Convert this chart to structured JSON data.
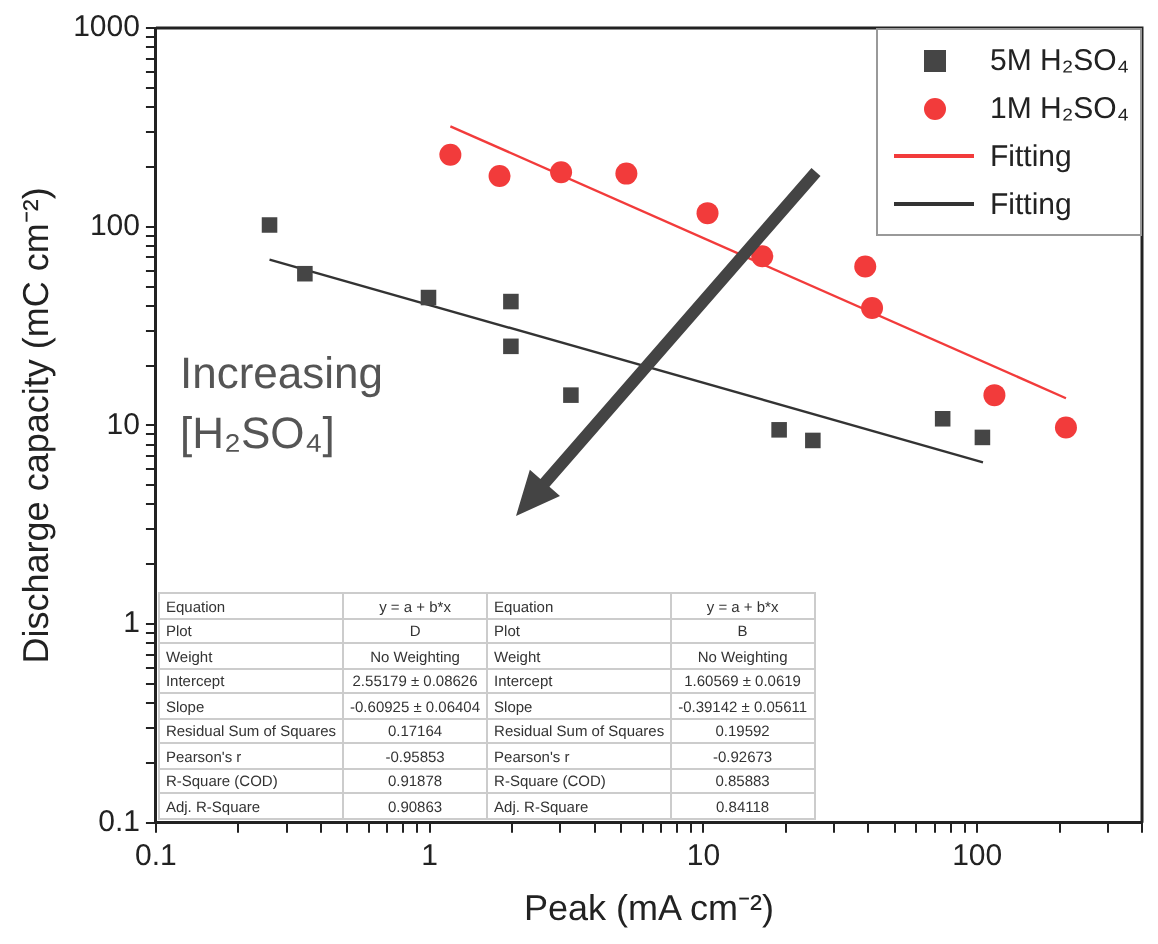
{
  "chart_data": {
    "type": "scatter",
    "xlabel": "Peak (mA cm⁻²)",
    "ylabel": "Discharge capacity (mC cm⁻²)",
    "log": "xy",
    "grid": false,
    "legend": "top right",
    "xlim": [
      0.1,
      400
    ],
    "ylim": [
      0.1,
      1000
    ],
    "xticks": [
      0.1,
      {
        "value": 0.2,
        "label": null
      },
      {
        "value": 0.3,
        "label": null
      },
      {
        "value": 0.4,
        "label": null
      },
      {
        "value": 0.5,
        "label": null
      },
      {
        "value": 0.6,
        "label": null
      },
      {
        "value": 0.7,
        "label": null
      },
      {
        "value": 0.8,
        "label": null
      },
      {
        "value": 0.9,
        "label": null
      },
      1,
      {
        "value": 2,
        "label": null
      },
      {
        "value": 3,
        "label": null
      },
      {
        "value": 4,
        "label": null
      },
      {
        "value": 5,
        "label": null
      },
      {
        "value": 6,
        "label": null
      },
      {
        "value": 7,
        "label": null
      },
      {
        "value": 8,
        "label": null
      },
      {
        "value": 9,
        "label": null
      },
      10,
      {
        "value": 20,
        "label": null
      },
      {
        "value": 30,
        "label": null
      },
      {
        "value": 40,
        "label": null
      },
      {
        "value": 50,
        "label": null
      },
      {
        "value": 60,
        "label": null
      },
      {
        "value": 70,
        "label": null
      },
      {
        "value": 80,
        "label": null
      },
      {
        "value": 90,
        "label": null
      },
      100,
      {
        "value": 200,
        "label": null
      },
      {
        "value": 300,
        "label": null
      },
      {
        "value": 400,
        "label": null
      }
    ],
    "yticks": [
      0.1,
      {
        "value": 0.2,
        "label": null
      },
      {
        "value": 0.3,
        "label": null
      },
      {
        "value": 0.4,
        "label": null
      },
      {
        "value": 0.5,
        "label": null
      },
      {
        "value": 0.6,
        "label": null
      },
      {
        "value": 0.7,
        "label": null
      },
      {
        "value": 0.8,
        "label": null
      },
      {
        "value": 0.9,
        "label": null
      },
      1,
      {
        "value": 2,
        "label": null
      },
      {
        "value": 3,
        "label": null
      },
      {
        "value": 4,
        "label": null
      },
      {
        "value": 5,
        "label": null
      },
      {
        "value": 6,
        "label": null
      },
      {
        "value": 7,
        "label": null
      },
      {
        "value": 8,
        "label": null
      },
      {
        "value": 9,
        "label": null
      },
      10,
      {
        "value": 20,
        "label": null
      },
      {
        "value": 30,
        "label": null
      },
      {
        "value": 40,
        "label": null
      },
      {
        "value": 50,
        "label": null
      },
      {
        "value": 60,
        "label": null
      },
      {
        "value": 70,
        "label": null
      },
      {
        "value": 80,
        "label": null
      },
      {
        "value": 90,
        "label": null
      },
      100,
      {
        "value": 200,
        "label": null
      },
      {
        "value": 300,
        "label": null
      },
      {
        "value": 400,
        "label": null
      },
      {
        "value": 500,
        "label": null
      },
      {
        "value": 600,
        "label": null
      },
      {
        "value": 700,
        "label": null
      },
      {
        "value": 800,
        "label": null
      },
      {
        "value": 900,
        "label": null
      },
      1000
    ],
    "series": [
      {
        "name": "5M H₂SO₄",
        "type": "scatter",
        "marker": "square",
        "color": "#454545",
        "x": [
          0.26,
          0.35,
          0.99,
          1.98,
          1.98,
          3.28,
          18.9,
          25.1,
          74.8,
          104.5
        ],
        "values": [
          102,
          58,
          44,
          42,
          25,
          14.2,
          9.5,
          8.4,
          10.8,
          8.7
        ]
      },
      {
        "name": "1M H₂SO₄",
        "type": "scatter",
        "marker": "circle",
        "color": "#f23b3b",
        "x": [
          1.19,
          1.8,
          3.02,
          5.23,
          10.35,
          16.4,
          39,
          41.3,
          115.6,
          211
        ],
        "values": [
          230,
          180,
          188,
          185,
          117,
          71,
          63,
          39,
          14.2,
          9.75
        ]
      },
      {
        "name": "Fitting",
        "type": "line",
        "marker": "none",
        "line_style": "solid",
        "color": "#f23b3b",
        "x": [
          1.19,
          211
        ],
        "values": [
          320,
          13.7
        ]
      },
      {
        "name": "Fitting",
        "type": "line",
        "marker": "none",
        "line_style": "solid",
        "color": "#333333",
        "x": [
          0.26,
          105
        ],
        "values": [
          68.3,
          6.52
        ]
      }
    ],
    "annotations": [
      "Increasing [H₂SO₄]",
      "Equation",
      "y = a + b*x",
      "Equation",
      "y = a + b*x",
      "Plot",
      "D",
      "Plot",
      "B",
      "Weight",
      "No Weighting",
      "Weight",
      "No Weighting",
      "Intercept",
      "2.55179 ± 0.08626",
      "Intercept",
      "1.60569 ± 0.0619",
      "Slope",
      "-0.60925 ± 0.06404",
      "Slope",
      "-0.39142 ± 0.05611",
      "Residual Sum of Squares",
      "0.17164",
      "Residual Sum of Squares",
      "0.19592",
      "Pearson's r",
      "-0.95853",
      "Pearson's r",
      "-0.92673",
      "R-Square (COD)",
      "0.91878",
      "R-Square (COD)",
      "0.85883",
      "Adj. R-Square",
      "0.90863",
      "Adj. R-Square",
      "0.84118"
    ]
  }
}
